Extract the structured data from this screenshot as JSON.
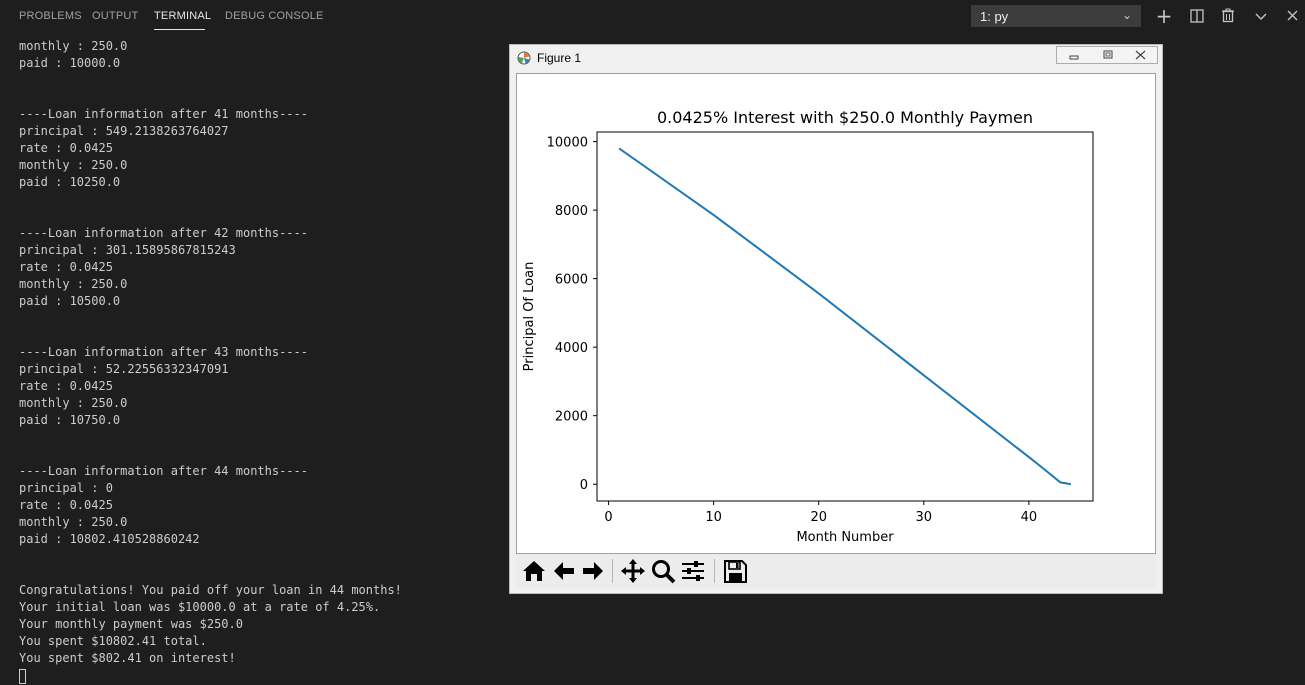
{
  "panel": {
    "tabs": [
      {
        "label": "PROBLEMS"
      },
      {
        "label": "OUTPUT"
      },
      {
        "label": "TERMINAL"
      },
      {
        "label": "DEBUG CONSOLE"
      }
    ],
    "active_tab": "TERMINAL",
    "terminal_select": {
      "value": "1: py"
    },
    "actions": [
      {
        "icon": "plus-icon"
      },
      {
        "icon": "split-terminal-icon"
      },
      {
        "icon": "trash-icon"
      },
      {
        "icon": "chevron-down-icon"
      },
      {
        "icon": "close-icon"
      }
    ]
  },
  "terminal": {
    "lines": [
      "monthly : 250.0",
      "paid : 10000.0",
      "",
      "",
      "----Loan information after 41 months----",
      "principal : 549.2138263764027",
      "rate : 0.0425",
      "monthly : 250.0",
      "paid : 10250.0",
      "",
      "",
      "----Loan information after 42 months----",
      "principal : 301.15895867815243",
      "rate : 0.0425",
      "monthly : 250.0",
      "paid : 10500.0",
      "",
      "",
      "----Loan information after 43 months----",
      "principal : 52.22556332347091",
      "rate : 0.0425",
      "monthly : 250.0",
      "paid : 10750.0",
      "",
      "",
      "----Loan information after 44 months----",
      "principal : 0",
      "rate : 0.0425",
      "monthly : 250.0",
      "paid : 10802.410528860242",
      "",
      "",
      "Congratulations! You paid off your loan in 44 months!",
      "Your initial loan was $10000.0 at a rate of 4.25%.",
      "Your monthly payment was $250.0",
      "You spent $10802.41 total.",
      "You spent $802.41 on interest!"
    ]
  },
  "figure": {
    "title": "Figure 1",
    "toolbar": [
      {
        "icon": "home-icon"
      },
      {
        "icon": "back-arrow-icon"
      },
      {
        "icon": "forward-arrow-icon"
      },
      {
        "icon": "pan-icon"
      },
      {
        "icon": "zoom-icon"
      },
      {
        "icon": "configure-subplots-icon"
      },
      {
        "icon": "save-icon"
      }
    ],
    "line_color": "#1f77b4"
  },
  "chart_data": {
    "type": "line",
    "title": "0.0425% Interest with $250.0 Monthly Paymen",
    "xlabel": "Month Number",
    "ylabel": "Principal Of Loan",
    "xlim": [
      -1.1,
      46.1
    ],
    "ylim": [
      -490,
      10280
    ],
    "xticks": [
      0,
      10,
      20,
      30,
      40
    ],
    "yticks": [
      0,
      2000,
      4000,
      6000,
      8000,
      10000
    ],
    "grid": false,
    "series": [
      {
        "x": [
          1,
          10,
          20,
          30,
          40,
          41,
          42,
          43,
          44
        ],
        "values": [
          9800,
          7860,
          5570,
          3180,
          790,
          549.21,
          301.16,
          52.23,
          0
        ]
      }
    ]
  }
}
